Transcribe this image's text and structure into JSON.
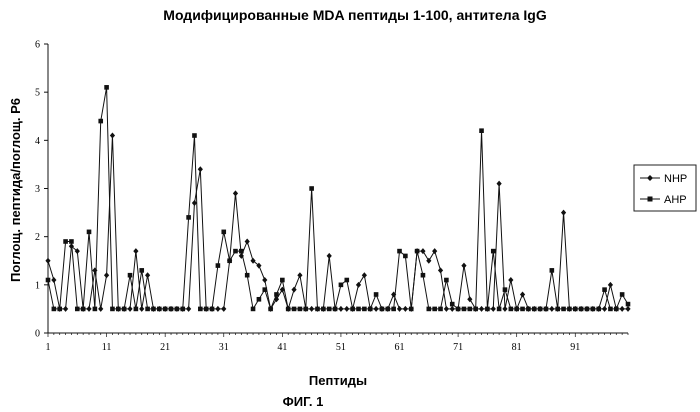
{
  "title": "Модифицированные MDA пептиды 1-100, антитела IgG",
  "figure_caption": "ФИГ. 1",
  "chart_data": {
    "type": "line",
    "title": "Модифицированные MDA пептиды 1-100, антитела IgG",
    "xlabel": "Пептиды",
    "ylabel": "Поглощ. пептида/поглощ. Р6",
    "xlim": [
      1,
      100
    ],
    "ylim": [
      0,
      6
    ],
    "xticks": [
      1,
      11,
      21,
      31,
      41,
      51,
      61,
      71,
      81,
      91
    ],
    "yticks": [
      0,
      1,
      2,
      3,
      4,
      5,
      6
    ],
    "grid": false,
    "legend": "right",
    "series": [
      {
        "name": "NHP",
        "marker": "diamond",
        "values": [
          1.5,
          1.1,
          0.5,
          0.5,
          1.8,
          1.7,
          0.5,
          0.5,
          1.3,
          0.5,
          1.2,
          4.1,
          0.5,
          0.5,
          0.5,
          1.7,
          0.5,
          1.2,
          0.5,
          0.5,
          0.5,
          0.5,
          0.5,
          0.5,
          0.5,
          2.7,
          3.4,
          0.5,
          0.5,
          0.5,
          0.5,
          1.5,
          2.9,
          1.6,
          1.9,
          1.5,
          1.4,
          1.1,
          0.5,
          0.7,
          0.9,
          0.5,
          0.9,
          1.2,
          0.5,
          0.5,
          0.5,
          0.5,
          1.6,
          0.5,
          0.5,
          0.5,
          0.5,
          1.0,
          1.2,
          0.5,
          0.5,
          0.5,
          0.5,
          0.8,
          0.5,
          0.5,
          0.5,
          1.7,
          1.7,
          1.5,
          1.7,
          1.3,
          0.5,
          0.5,
          0.5,
          1.4,
          0.7,
          0.5,
          0.5,
          0.5,
          0.5,
          3.1,
          0.5,
          1.1,
          0.5,
          0.8,
          0.5,
          0.5,
          0.5,
          0.5,
          0.5,
          0.5,
          2.5,
          0.5,
          0.5,
          0.5,
          0.5,
          0.5,
          0.5,
          0.5,
          1.0,
          0.5,
          0.5,
          0.5
        ],
        "note": ""
      },
      {
        "name": "AHP",
        "marker": "square",
        "values": [
          1.1,
          0.5,
          0.5,
          1.9,
          1.9,
          0.5,
          0.5,
          2.1,
          0.5,
          4.4,
          5.1,
          0.5,
          0.5,
          0.5,
          1.2,
          0.5,
          1.3,
          0.5,
          0.5,
          0.5,
          0.5,
          0.5,
          0.5,
          0.5,
          2.4,
          4.1,
          0.5,
          0.5,
          0.5,
          1.4,
          2.1,
          1.5,
          1.7,
          1.7,
          1.2,
          0.5,
          0.7,
          0.9,
          0.5,
          0.8,
          1.1,
          0.5,
          0.5,
          0.5,
          0.5,
          3.0,
          0.5,
          0.5,
          0.5,
          0.5,
          1.0,
          1.1,
          0.5,
          0.5,
          0.5,
          0.5,
          0.8,
          0.5,
          0.5,
          0.5,
          1.7,
          1.6,
          0.5,
          1.7,
          1.2,
          0.5,
          0.5,
          0.5,
          1.1,
          0.6,
          0.5,
          0.5,
          0.5,
          0.5,
          4.2,
          0.5,
          1.7,
          0.5,
          0.9,
          0.5,
          0.5,
          0.5,
          0.5,
          0.5,
          0.5,
          0.5,
          1.3,
          0.5,
          0.5,
          0.5,
          0.5,
          0.5,
          0.5,
          0.5,
          0.5,
          0.9,
          0.5,
          0.5,
          0.8,
          0.6
        ]
      }
    ]
  }
}
